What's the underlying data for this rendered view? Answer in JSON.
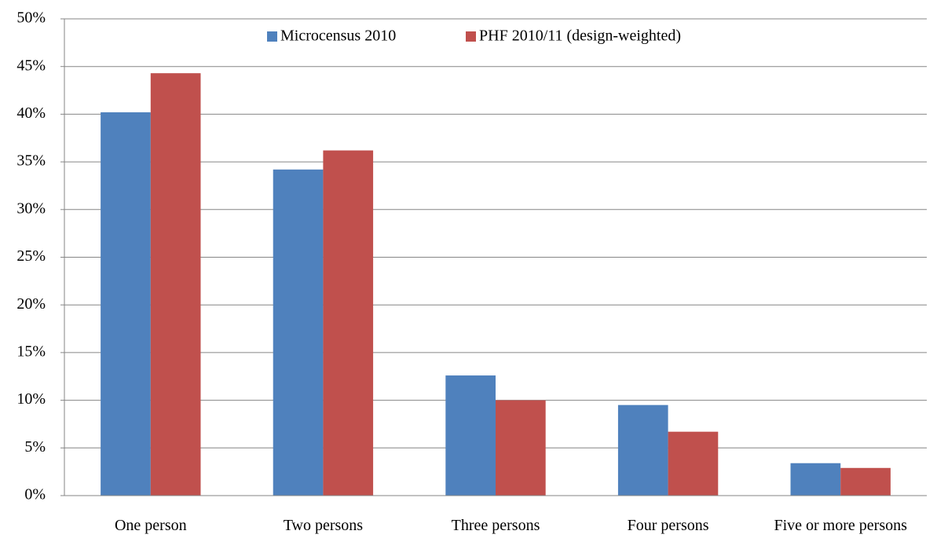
{
  "chart_data": {
    "type": "bar",
    "categories": [
      "One person",
      "Two persons",
      "Three persons",
      "Four persons",
      "Five or more persons"
    ],
    "series": [
      {
        "name": "Microcensus 2010",
        "color": "#4f81bd",
        "values": [
          40.2,
          34.2,
          12.6,
          9.5,
          3.4
        ]
      },
      {
        "name": "PHF 2010/11 (design-weighted)",
        "color": "#c0504d",
        "values": [
          44.3,
          36.2,
          10.0,
          6.7,
          2.9
        ]
      }
    ],
    "ylim": [
      0,
      50
    ],
    "yticks": [
      {
        "value": 0,
        "label": "0%"
      },
      {
        "value": 5,
        "label": "5%"
      },
      {
        "value": 10,
        "label": "10%"
      },
      {
        "value": 15,
        "label": "15%"
      },
      {
        "value": 20,
        "label": "20%"
      },
      {
        "value": 25,
        "label": "25%"
      },
      {
        "value": 30,
        "label": "30%"
      },
      {
        "value": 35,
        "label": "35%"
      },
      {
        "value": 40,
        "label": "40%"
      },
      {
        "value": 45,
        "label": "45%"
      },
      {
        "value": 50,
        "label": "50%"
      }
    ],
    "grid": true,
    "legend": "top"
  }
}
